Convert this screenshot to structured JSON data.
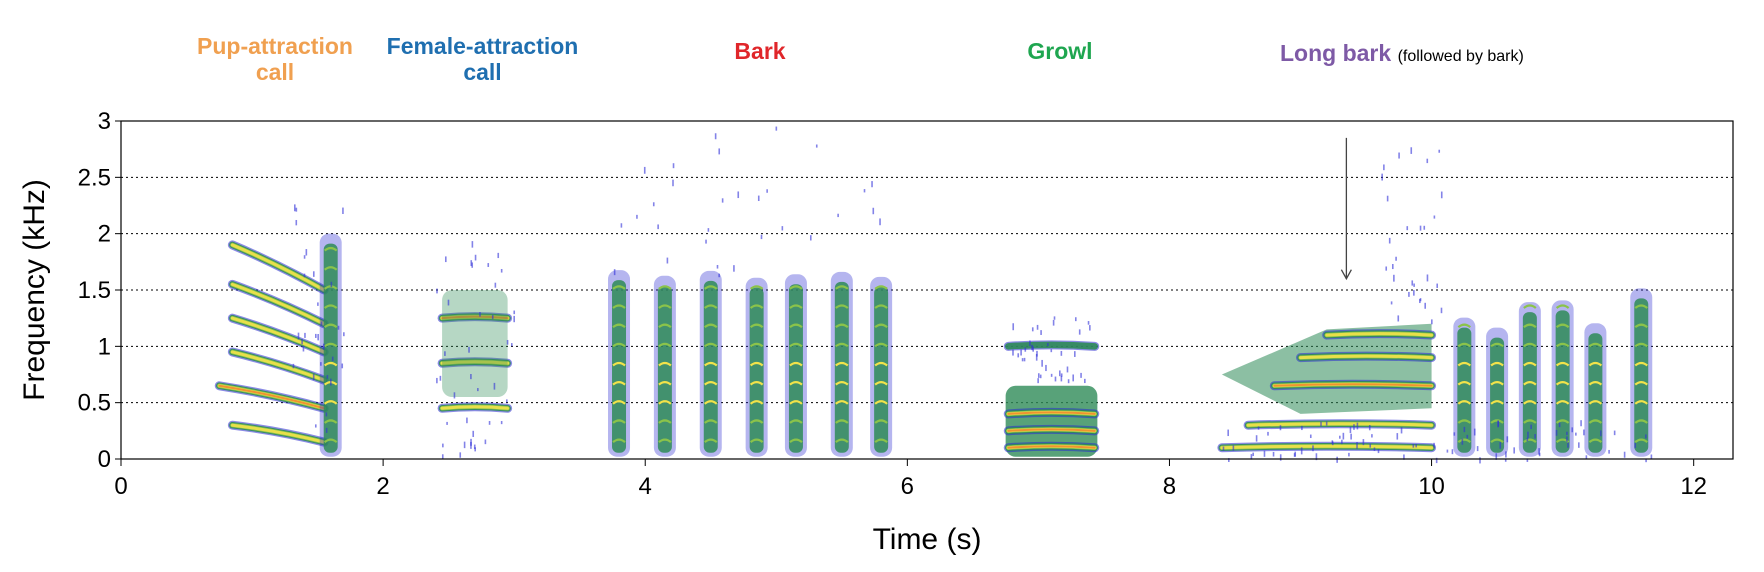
{
  "chart_data": {
    "type": "heatmap",
    "title": "",
    "xlabel": "Time (s)",
    "ylabel": "Frequency (kHz)",
    "xlim": [
      0,
      12.3
    ],
    "ylim": [
      0,
      3
    ],
    "x_ticks": [
      "0",
      "2",
      "4",
      "6",
      "8",
      "10",
      "12"
    ],
    "y_ticks": [
      "0",
      "0.5",
      "1",
      "1.5",
      "2",
      "2.5",
      "3"
    ],
    "grid": "horizontal dotted",
    "call_types": [
      {
        "name": "Pup-attraction call",
        "line1": "Pup-attraction",
        "line2": "call",
        "color": "#f0a050",
        "time_range": [
          0.75,
          1.65
        ]
      },
      {
        "name": "Female-attraction call",
        "line1": "Female-attraction",
        "line2": "call",
        "color": "#1f6fb0",
        "time_range": [
          2.45,
          2.95
        ]
      },
      {
        "name": "Bark",
        "line1": "Bark",
        "line2": "",
        "color": "#e0262a",
        "time_range": [
          3.7,
          5.85
        ]
      },
      {
        "name": "Growl",
        "line1": "Growl",
        "line2": "",
        "color": "#1fa650",
        "time_range": [
          6.75,
          7.45
        ]
      },
      {
        "name": "Long bark",
        "line1": "Long bark",
        "line2": "",
        "note": "(followed by bark)",
        "color": "#7e5aa6",
        "time_range": [
          8.4,
          11.7
        ]
      }
    ],
    "arrow": {
      "time_s": 9.35,
      "from_khz": 2.85,
      "to_khz": 1.6
    },
    "spectrogram_segments": [
      {
        "call": "Pup-attraction",
        "t_start": 0.75,
        "t_end": 1.55,
        "harmonics_khz": [
          0.3,
          0.65,
          0.95,
          1.25,
          1.55,
          1.9
        ],
        "slope": -0.15
      },
      {
        "call": "Female-attraction",
        "t_start": 2.45,
        "t_end": 2.95,
        "harmonics_khz": [
          0.45,
          0.85,
          1.25
        ],
        "slope": 0.0
      },
      {
        "call": "Bark",
        "pulses_s": [
          3.8,
          4.15,
          4.5,
          4.85,
          5.15,
          5.5,
          5.8
        ],
        "pulse_top_khz": 1.7
      },
      {
        "call": "Growl",
        "t_start": 6.75,
        "t_end": 7.45,
        "bands_khz": [
          0.1,
          0.25,
          0.4,
          1.0
        ],
        "slope": 0.0
      },
      {
        "call": "Long bark",
        "t_start": 8.4,
        "t_end": 10.0,
        "bands_khz": [
          0.1,
          0.3,
          0.65,
          0.9,
          1.1
        ],
        "pulses_s": [
          10.25,
          10.5,
          10.75,
          11.0,
          11.25,
          11.6
        ],
        "pulse_top_khz": 1.6
      }
    ]
  }
}
